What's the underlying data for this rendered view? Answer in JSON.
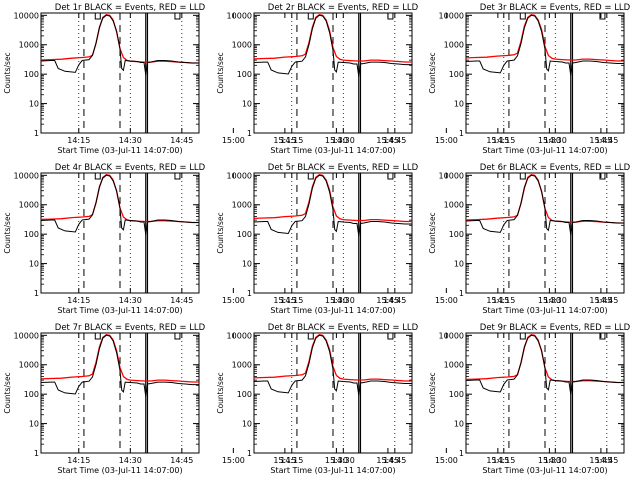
{
  "figure_title": "",
  "chart_data": [
    {
      "type": "line",
      "title": "Det 1r BLACK = Events, RED = LLD"
    },
    {
      "type": "line",
      "title": "Det 2r BLACK = Events, RED = LLD"
    },
    {
      "type": "line",
      "title": "Det 3r BLACK = Events, RED = LLD"
    },
    {
      "type": "line",
      "title": "Det 4r BLACK = Events, RED = LLD"
    },
    {
      "type": "line",
      "title": "Det 5r BLACK = Events, RED = LLD"
    },
    {
      "type": "line",
      "title": "Det 6r BLACK = Events, RED = LLD"
    },
    {
      "type": "line",
      "title": "Det 7r BLACK = Events, RED = LLD"
    },
    {
      "type": "line",
      "title": "Det 8r BLACK = Events, RED = LLD"
    },
    {
      "type": "line",
      "title": "Det 9r BLACK = Events, RED = LLD"
    }
  ],
  "shared": {
    "xlabel": "Start Time (03-Jul-11 14:07:00)",
    "ylabel": "Counts/sec",
    "xlim_minutes": [
      -3,
      43
    ],
    "ylim": [
      1,
      12000
    ],
    "y_scale": "log",
    "x_tick_labels": [
      "14:15",
      "14:30",
      "14:45",
      "15:00",
      "15:15",
      "15:30",
      "15:45"
    ],
    "y_tick_labels": [
      "1",
      "10",
      "100",
      "1000",
      "10000"
    ],
    "y_tick_values": [
      1,
      10,
      100,
      1000,
      10000
    ],
    "dotted_gridlines_x_labels": [
      "14:15",
      "14:30",
      "14:45",
      "15:00",
      "15:15",
      "15:30",
      "15:45"
    ],
    "dashed_markers_minutes": [
      9.5,
      20.0
    ],
    "solid_markers_minutes": [
      27.5,
      28.0
    ],
    "events_color": "#000000",
    "lld_color": "#ff0000",
    "series": [
      {
        "name": "LLD",
        "color": "#ff0000",
        "points": [
          [
            -3,
            330
          ],
          [
            0,
            340
          ],
          [
            3,
            350
          ],
          [
            6,
            380
          ],
          [
            9,
            400
          ],
          [
            11,
            420
          ],
          [
            12,
            480
          ],
          [
            13,
            1200
          ],
          [
            14,
            4000
          ],
          [
            15,
            8500
          ],
          [
            16,
            10500
          ],
          [
            17,
            10000
          ],
          [
            18,
            7000
          ],
          [
            19,
            3000
          ],
          [
            20,
            800
          ],
          [
            21,
            400
          ],
          [
            22,
            320
          ],
          [
            23,
            300
          ],
          [
            25,
            290
          ],
          [
            27,
            280
          ],
          [
            29,
            280
          ],
          [
            31,
            300
          ],
          [
            33,
            300
          ],
          [
            35,
            290
          ],
          [
            37,
            280
          ],
          [
            39,
            270
          ],
          [
            41,
            260
          ],
          [
            43,
            260
          ]
        ]
      },
      {
        "name": "Events",
        "color": "#000000",
        "points": [
          [
            -3,
            270
          ],
          [
            0,
            280
          ],
          [
            1,
            280
          ],
          [
            2,
            150
          ],
          [
            4,
            120
          ],
          [
            7,
            110
          ],
          [
            8,
            200
          ],
          [
            9,
            280
          ],
          [
            11,
            300
          ],
          [
            12,
            420
          ],
          [
            13,
            1100
          ],
          [
            14,
            3800
          ],
          [
            15,
            8000
          ],
          [
            16,
            10000
          ],
          [
            17,
            9500
          ],
          [
            18,
            6500
          ],
          [
            19,
            2800
          ],
          [
            20,
            700
          ],
          [
            20.5,
            150
          ],
          [
            21,
            130
          ],
          [
            21.5,
            280
          ],
          [
            23,
            270
          ],
          [
            25,
            260
          ],
          [
            26,
            240
          ],
          [
            27,
            240
          ],
          [
            27.5,
            90
          ],
          [
            28,
            240
          ],
          [
            29,
            250
          ],
          [
            31,
            280
          ],
          [
            33,
            280
          ],
          [
            35,
            270
          ],
          [
            37,
            250
          ],
          [
            39,
            240
          ],
          [
            41,
            230
          ],
          [
            43,
            230
          ]
        ]
      }
    ]
  }
}
